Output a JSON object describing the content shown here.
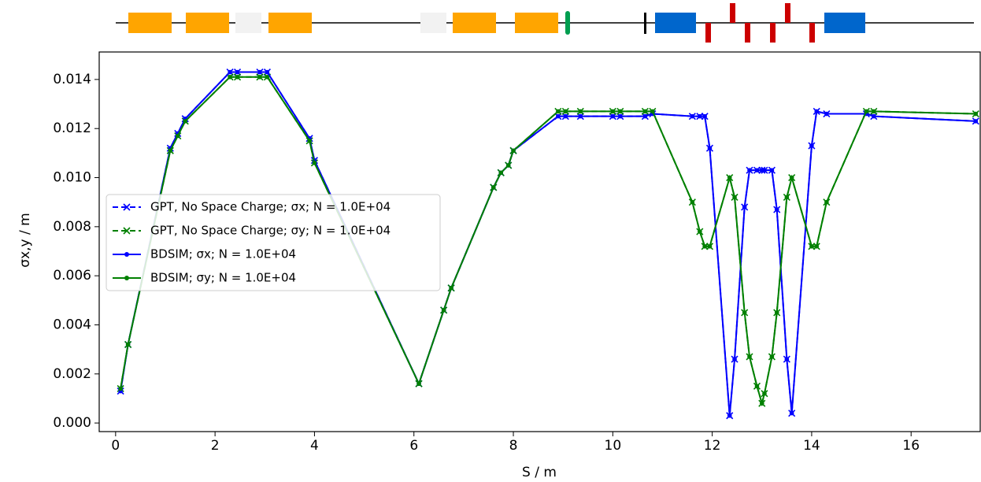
{
  "chart_data": {
    "type": "line",
    "x_label": "S / m",
    "y_label": "σx,y / m",
    "x": [
      0.1,
      0.25,
      1.1,
      1.25,
      1.4,
      2.3,
      2.45,
      2.9,
      3.05,
      3.9,
      4.0,
      6.1,
      6.6,
      6.75,
      7.6,
      7.75,
      7.9,
      8.0,
      8.9,
      9.05,
      9.35,
      10.0,
      10.15,
      10.65,
      10.8,
      11.6,
      11.75,
      11.85,
      11.95,
      12.35,
      12.45,
      12.65,
      12.75,
      12.9,
      13.0,
      13.05,
      13.2,
      13.3,
      13.5,
      13.6,
      14.0,
      14.1,
      14.3,
      15.1,
      15.25,
      17.3
    ],
    "series": [
      {
        "name": "GPT, No Space Charge; σx; N = 1.0E+04",
        "color": "#0000ff",
        "linestyle": "dashed",
        "marker": "x",
        "values": [
          0.0013,
          0.0032,
          0.0112,
          0.0118,
          0.0124,
          0.0143,
          0.0143,
          0.0143,
          0.0143,
          0.0116,
          0.0107,
          0.0016,
          0.0046,
          0.0055,
          0.0096,
          0.0102,
          0.0105,
          0.0111,
          0.0125,
          0.0125,
          0.0125,
          0.0125,
          0.0125,
          0.0125,
          0.0126,
          0.0125,
          0.0125,
          0.0125,
          0.0112,
          0.0003,
          0.0026,
          0.0088,
          0.0103,
          0.0103,
          0.0103,
          0.0103,
          0.0103,
          0.0087,
          0.0026,
          0.0004,
          0.0113,
          0.0127,
          0.0126,
          0.0126,
          0.0125,
          0.0123
        ]
      },
      {
        "name": "GPT, No Space Charge; σy; N = 1.0E+04",
        "color": "#008000",
        "linestyle": "dashed",
        "marker": "x",
        "values": [
          0.0014,
          0.0032,
          0.0111,
          0.0117,
          0.0123,
          0.0141,
          0.0141,
          0.0141,
          0.0141,
          0.0115,
          0.0106,
          0.0016,
          0.0046,
          0.0055,
          0.0096,
          0.0102,
          0.0105,
          0.0111,
          0.0127,
          0.0127,
          0.0127,
          0.0127,
          0.0127,
          0.0127,
          0.0127,
          0.009,
          0.0078,
          0.0072,
          0.0072,
          0.01,
          0.0092,
          0.0045,
          0.0027,
          0.0015,
          0.0008,
          0.0012,
          0.0027,
          0.0045,
          0.0092,
          0.01,
          0.0072,
          0.0072,
          0.009,
          0.0127,
          0.0127,
          0.0126
        ]
      },
      {
        "name": "BDSIM; σx; N = 1.0E+04",
        "color": "#0000ff",
        "linestyle": "solid",
        "marker": "dot",
        "values": [
          0.0013,
          0.0032,
          0.0112,
          0.0118,
          0.0124,
          0.0143,
          0.0143,
          0.0143,
          0.0143,
          0.0116,
          0.0107,
          0.0016,
          0.0046,
          0.0055,
          0.0096,
          0.0102,
          0.0105,
          0.0111,
          0.0125,
          0.0125,
          0.0125,
          0.0125,
          0.0125,
          0.0125,
          0.0126,
          0.0125,
          0.0125,
          0.0125,
          0.0112,
          0.0003,
          0.0026,
          0.0088,
          0.0103,
          0.0103,
          0.0103,
          0.0103,
          0.0103,
          0.0087,
          0.0026,
          0.0004,
          0.0113,
          0.0127,
          0.0126,
          0.0126,
          0.0125,
          0.0123
        ]
      },
      {
        "name": "BDSIM; σy; N = 1.0E+04",
        "color": "#008000",
        "linestyle": "solid",
        "marker": "dot",
        "values": [
          0.0014,
          0.0032,
          0.0111,
          0.0117,
          0.0123,
          0.0141,
          0.0141,
          0.0141,
          0.0141,
          0.0115,
          0.0106,
          0.0016,
          0.0046,
          0.0055,
          0.0096,
          0.0102,
          0.0105,
          0.0111,
          0.0127,
          0.0127,
          0.0127,
          0.0127,
          0.0127,
          0.0127,
          0.0127,
          0.009,
          0.0078,
          0.0072,
          0.0072,
          0.01,
          0.0092,
          0.0045,
          0.0027,
          0.0015,
          0.0008,
          0.0012,
          0.0027,
          0.0045,
          0.0092,
          0.01,
          0.0072,
          0.0072,
          0.009,
          0.0127,
          0.0127,
          0.0126
        ]
      }
    ],
    "xlim": [
      -0.33,
      17.39
    ],
    "xticks": [
      0,
      2,
      4,
      6,
      8,
      10,
      12,
      14,
      16
    ],
    "ylim": [
      -0.00035,
      0.01512
    ],
    "yticks": [
      {
        "value": 0,
        "label": "0.000"
      },
      {
        "value": 0.002,
        "label": "0.002"
      },
      {
        "value": 0.004,
        "label": "0.004"
      },
      {
        "value": 0.006,
        "label": "0.006"
      },
      {
        "value": 0.008,
        "label": "0.008"
      },
      {
        "value": 0.01,
        "label": "0.010"
      },
      {
        "value": 0.012,
        "label": "0.012"
      },
      {
        "value": 0.014,
        "label": "0.014"
      }
    ],
    "legend": "center left"
  }
}
